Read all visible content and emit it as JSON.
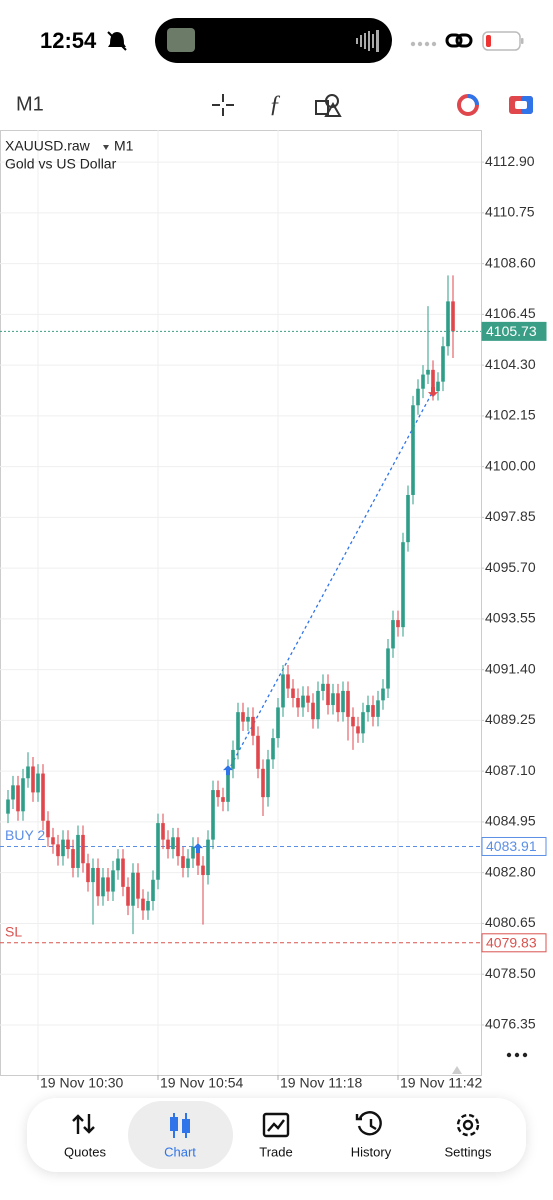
{
  "status_bar": {
    "time": "12:54"
  },
  "toolbar": {
    "timeframe": "M1"
  },
  "chart_data": {
    "type": "candlestick",
    "symbol": "XAUUSD.raw",
    "timeframe": "M1",
    "subtitle": "Gold vs US Dollar",
    "categories": [
      null,
      null,
      null,
      null,
      null,
      null,
      "19 Nov 10:30",
      null,
      null,
      null,
      null,
      null,
      null,
      null,
      null,
      null,
      null,
      null,
      null,
      null,
      null,
      null,
      null,
      null,
      null,
      null,
      null,
      null,
      null,
      null,
      "19 Nov 10:54",
      null,
      null,
      null,
      null,
      null,
      null,
      null,
      null,
      null,
      null,
      null,
      null,
      null,
      null,
      null,
      null,
      null,
      null,
      null,
      null,
      null,
      null,
      null,
      "19 Nov 11:18",
      null,
      null,
      null,
      null,
      null,
      null,
      null,
      null,
      null,
      null,
      null,
      null,
      null,
      null,
      null,
      null,
      null,
      null,
      null,
      null,
      null,
      null,
      null,
      "19 Nov 11:42",
      null,
      null,
      null,
      null,
      null,
      null,
      null,
      null,
      null,
      null,
      null
    ],
    "series": {
      "open": [
        4085.3,
        4085.9,
        4086.5,
        4085.4,
        4086.8,
        4087.3,
        4086.2,
        4087.0,
        4085.0,
        4084.3,
        4084.0,
        4083.5,
        4084.2,
        4083.8,
        4083.0,
        4084.4,
        4083.2,
        4082.4,
        4083.0,
        4081.8,
        4082.6,
        4082.0,
        4082.9,
        4083.4,
        4082.2,
        4081.4,
        4082.8,
        4081.7,
        4081.2,
        4081.6,
        4082.5,
        4084.9,
        4084.2,
        4083.8,
        4084.3,
        4083.5,
        4083.0,
        4083.4,
        4083.9,
        4083.1,
        4082.7,
        4084.2,
        4086.3,
        4086.0,
        4085.8,
        4087.2,
        4088.0,
        4089.6,
        4089.2,
        4089.4,
        4088.6,
        4087.2,
        4086.0,
        4087.6,
        4088.5,
        4089.8,
        4091.2,
        4090.6,
        4090.2,
        4089.8,
        4090.3,
        4090.0,
        4089.3,
        4090.5,
        4090.8,
        4089.9,
        4090.4,
        4089.6,
        4090.5,
        4089.4,
        4089.0,
        4088.7,
        4089.6,
        4089.9,
        4089.4,
        4090.1,
        4090.6,
        4092.3,
        4093.5,
        4093.2,
        4096.8,
        4098.8,
        4102.6,
        4103.3,
        4103.9,
        4104.1,
        4103.2,
        4103.6,
        4105.1,
        4107.0
      ],
      "high": [
        4086.3,
        4086.9,
        4086.9,
        4087.2,
        4087.9,
        4087.7,
        4087.4,
        4087.4,
        4085.4,
        4084.7,
        4084.4,
        4084.6,
        4084.6,
        4084.2,
        4084.8,
        4084.8,
        4083.6,
        4083.4,
        4083.4,
        4083.0,
        4083.0,
        4083.3,
        4083.8,
        4083.8,
        4082.6,
        4083.2,
        4083.2,
        4082.1,
        4082.0,
        4082.9,
        4085.3,
        4085.3,
        4084.6,
        4084.7,
        4084.7,
        4083.9,
        4083.8,
        4084.3,
        4084.3,
        4083.5,
        4084.6,
        4086.7,
        4086.7,
        4086.4,
        4087.6,
        4088.4,
        4090.0,
        4090.0,
        4089.8,
        4089.8,
        4089.0,
        4087.6,
        4088.0,
        4088.9,
        4090.2,
        4091.6,
        4091.6,
        4091.0,
        4090.6,
        4090.7,
        4090.7,
        4090.4,
        4090.9,
        4091.2,
        4091.2,
        4090.8,
        4090.8,
        4090.9,
        4090.9,
        4089.8,
        4089.4,
        4090.0,
        4090.3,
        4090.3,
        4090.5,
        4091.0,
        4092.7,
        4093.9,
        4093.9,
        4097.2,
        4099.2,
        4103.0,
        4103.7,
        4104.3,
        4106.8,
        4104.5,
        4104.0,
        4105.5,
        4108.1,
        4108.1
      ],
      "low": [
        4084.9,
        4085.5,
        4085.0,
        4085.0,
        4086.4,
        4085.8,
        4085.8,
        4084.6,
        4083.9,
        4083.6,
        4083.1,
        4083.1,
        4083.4,
        4082.6,
        4082.6,
        4082.8,
        4082.0,
        4080.6,
        4081.4,
        4081.4,
        4081.6,
        4081.6,
        4082.5,
        4081.8,
        4081.0,
        4080.2,
        4081.3,
        4080.8,
        4080.8,
        4081.2,
        4082.1,
        4083.8,
        4083.4,
        4083.4,
        4083.1,
        4082.6,
        4082.6,
        4083.0,
        4082.7,
        4080.6,
        4082.3,
        4083.8,
        4085.6,
        4085.4,
        4085.4,
        4086.8,
        4087.6,
        4088.8,
        4088.8,
        4088.2,
        4086.8,
        4085.2,
        4085.6,
        4087.2,
        4088.1,
        4089.4,
        4090.2,
        4089.8,
        4089.4,
        4089.4,
        4089.6,
        4088.9,
        4088.9,
        4090.1,
        4089.5,
        4089.5,
        4089.2,
        4089.2,
        4088.4,
        4088.0,
        4088.3,
        4088.3,
        4089.2,
        4089.0,
        4089.0,
        4089.7,
        4090.2,
        4091.9,
        4092.8,
        4092.8,
        4096.4,
        4098.4,
        4102.2,
        4102.9,
        4103.5,
        4102.8,
        4102.8,
        4103.2,
        4104.7,
        4104.6
      ],
      "close": [
        4085.9,
        4086.5,
        4085.4,
        4086.8,
        4087.3,
        4086.2,
        4087.0,
        4085.0,
        4084.3,
        4084.0,
        4083.5,
        4084.2,
        4083.8,
        4083.0,
        4084.4,
        4083.2,
        4082.4,
        4083.0,
        4081.8,
        4082.6,
        4082.0,
        4082.9,
        4083.4,
        4082.2,
        4081.4,
        4082.8,
        4081.7,
        4081.2,
        4081.6,
        4082.5,
        4084.9,
        4084.2,
        4083.8,
        4084.3,
        4083.5,
        4083.0,
        4083.4,
        4083.9,
        4083.1,
        4082.7,
        4084.2,
        4086.3,
        4086.0,
        4085.8,
        4087.2,
        4088.0,
        4089.6,
        4089.2,
        4089.4,
        4088.6,
        4087.2,
        4086.0,
        4087.6,
        4088.5,
        4089.8,
        4091.2,
        4090.6,
        4090.2,
        4089.8,
        4090.3,
        4090.0,
        4089.3,
        4090.5,
        4090.8,
        4089.9,
        4090.4,
        4089.6,
        4090.5,
        4089.4,
        4089.0,
        4088.7,
        4089.6,
        4089.9,
        4089.4,
        4090.1,
        4090.6,
        4092.3,
        4093.5,
        4093.2,
        4096.8,
        4098.8,
        4102.6,
        4103.3,
        4103.9,
        4104.1,
        4103.2,
        4103.6,
        4105.1,
        4107.0,
        4105.73
      ]
    },
    "up_color": "#2f9e88",
    "down_color": "#e0474c",
    "ylim": [
      4074.23,
      4114.26
    ],
    "yticks": [
      {
        "value": 4112.9,
        "label": "4112.90"
      },
      4110.75,
      {
        "value": 4108.6,
        "label": "4108.60"
      },
      4106.45,
      {
        "value": 4104.3,
        "label": "4104.30"
      },
      4102.15,
      {
        "value": 4100,
        "label": "4100.00"
      },
      4097.85,
      {
        "value": 4095.7,
        "label": "4095.70"
      },
      4093.55,
      {
        "value": 4091.4,
        "label": "4091.40"
      },
      4089.25,
      {
        "value": 4087.1,
        "label": "4087.10"
      },
      4084.95,
      {
        "value": 4082.8,
        "label": "4082.80"
      },
      4080.65,
      {
        "value": 4078.5,
        "label": "4078.50"
      },
      4076.35
    ],
    "grid": true,
    "last_price": 4105.73,
    "last_price_color": "#3a9e86",
    "levels": [
      {
        "label": "BUY 2",
        "value": 4083.91,
        "color": "#5b8fe6"
      },
      {
        "label": "SL",
        "value": 4079.83,
        "color": "#d9534f"
      }
    ],
    "deals": [
      {
        "side": "buy",
        "index": 38,
        "price": 4083.8,
        "color": "#2f74e8"
      },
      {
        "side": "buy",
        "index": 44,
        "price": 4087.1,
        "color": "#2f74e8"
      },
      {
        "side": "sell",
        "index": 85,
        "price": 4103.2,
        "color": "#e0474c"
      }
    ]
  },
  "nav": {
    "items": [
      "Quotes",
      "Chart",
      "Trade",
      "History",
      "Settings"
    ],
    "active": "Chart"
  }
}
